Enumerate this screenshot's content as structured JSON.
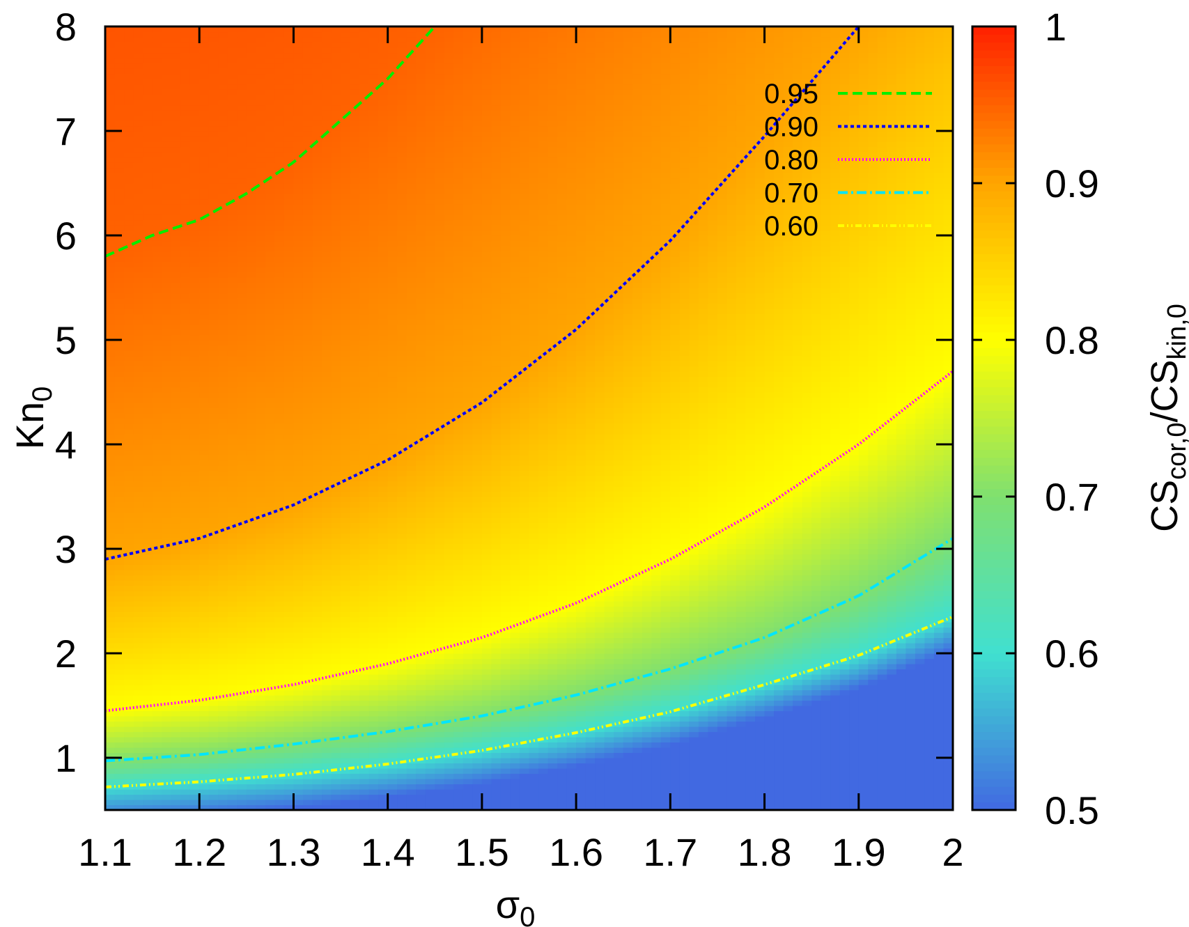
{
  "chart_data": {
    "type": "heatmap",
    "title": "",
    "xlabel": "σ",
    "xlabel_sub": "0",
    "ylabel": "Kn",
    "ylabel_sub": "0",
    "xlim": [
      1.1,
      2.0
    ],
    "ylim": [
      0.5,
      8
    ],
    "x_ticks": [
      1.1,
      1.2,
      1.3,
      1.4,
      1.5,
      1.6,
      1.7,
      1.8,
      1.9,
      2.0
    ],
    "x_tick_labels": [
      "1.1",
      "1.2",
      "1.3",
      "1.4",
      "1.5",
      "1.6",
      "1.7",
      "1.8",
      "1.9",
      "2"
    ],
    "y_ticks": [
      1,
      2,
      3,
      4,
      5,
      6,
      7,
      8
    ],
    "y_tick_labels": [
      "1",
      "2",
      "3",
      "4",
      "5",
      "6",
      "7",
      "8"
    ],
    "colorbar": {
      "label": "CS",
      "label_sub1": "cor,0",
      "label_mid": "/CS",
      "label_sub2": "kin,0",
      "range": [
        0.5,
        1.0
      ],
      "ticks": [
        0.5,
        0.6,
        0.7,
        0.8,
        0.9,
        1.0
      ],
      "tick_labels": [
        "0.5",
        "0.6",
        "0.7",
        "0.8",
        "0.9",
        "1"
      ],
      "palette": [
        [
          0.5,
          "#4169e1"
        ],
        [
          0.6,
          "#40e0d0"
        ],
        [
          0.7,
          "#7fe070"
        ],
        [
          0.8,
          "#ffff00"
        ],
        [
          0.9,
          "#ffa500"
        ],
        [
          1.0,
          "#ff2000"
        ]
      ]
    },
    "legend_position": "top-right",
    "contours": [
      {
        "name": "0.95",
        "level": 0.95,
        "color": "#00ee00",
        "dash": "14 7",
        "x": [
          1.1,
          1.15,
          1.2,
          1.25,
          1.3,
          1.35,
          1.4,
          1.45
        ],
        "y": [
          5.8,
          6.0,
          6.15,
          6.4,
          6.7,
          7.1,
          7.5,
          8.0
        ]
      },
      {
        "name": "0.90",
        "level": 0.9,
        "color": "#0000ff",
        "dash": "5 4",
        "x": [
          1.1,
          1.2,
          1.3,
          1.4,
          1.5,
          1.6,
          1.7,
          1.8,
          1.9
        ],
        "y": [
          2.9,
          3.1,
          3.42,
          3.85,
          4.4,
          5.1,
          5.95,
          6.95,
          8.0
        ]
      },
      {
        "name": "0.80",
        "level": 0.8,
        "color": "#ff00ff",
        "dash": "2 3",
        "x": [
          1.1,
          1.2,
          1.3,
          1.4,
          1.5,
          1.6,
          1.7,
          1.8,
          1.9,
          2.0
        ],
        "y": [
          1.45,
          1.55,
          1.7,
          1.9,
          2.15,
          2.48,
          2.9,
          3.4,
          4.0,
          4.7
        ]
      },
      {
        "name": "0.70",
        "level": 0.7,
        "color": "#00e5ff",
        "dash": "14 5 3 5",
        "x": [
          1.1,
          1.2,
          1.3,
          1.4,
          1.5,
          1.6,
          1.7,
          1.8,
          1.9,
          2.0
        ],
        "y": [
          0.97,
          1.03,
          1.13,
          1.25,
          1.4,
          1.6,
          1.85,
          2.15,
          2.55,
          3.1
        ]
      },
      {
        "name": "0.60",
        "level": 0.6,
        "color": "#ffff00",
        "dash": "9 4 2 4 2 4",
        "x": [
          1.1,
          1.2,
          1.3,
          1.4,
          1.5,
          1.6,
          1.7,
          1.8,
          1.9,
          2.0
        ],
        "y": [
          0.72,
          0.77,
          0.84,
          0.94,
          1.07,
          1.24,
          1.44,
          1.7,
          1.98,
          2.35
        ]
      }
    ]
  }
}
